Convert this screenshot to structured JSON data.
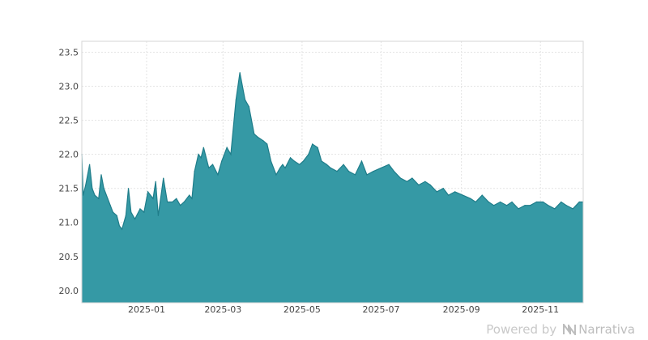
{
  "chart_data": {
    "type": "area",
    "title": "",
    "xlabel": "",
    "ylabel": "",
    "ylim": [
      19.82,
      23.66
    ],
    "xlim": [
      "2024-11-12",
      "2025-12-04"
    ],
    "yticks": [
      20.0,
      20.5,
      21.0,
      21.5,
      22.0,
      22.5,
      23.0,
      23.5
    ],
    "xticks": [
      "2025-01",
      "2025-03",
      "2025-05",
      "2025-07",
      "2025-09",
      "2025-11"
    ],
    "grid": true,
    "fill_color": "#3599a5",
    "line_color": "#1f7d8a",
    "series": [
      {
        "x": [
          "2024-11-12",
          "2024-11-13",
          "2024-11-15",
          "2024-11-18",
          "2024-11-20",
          "2024-11-22",
          "2024-11-25",
          "2024-11-27",
          "2024-11-29",
          "2024-12-02",
          "2024-12-04",
          "2024-12-06",
          "2024-12-09",
          "2024-12-11",
          "2024-12-13",
          "2024-12-16",
          "2024-12-18",
          "2024-12-20",
          "2024-12-23",
          "2024-12-27",
          "2024-12-30",
          "2025-01-02",
          "2025-01-06",
          "2025-01-08",
          "2025-01-10",
          "2025-01-14",
          "2025-01-17",
          "2025-01-21",
          "2025-01-24",
          "2025-01-27",
          "2025-01-30",
          "2025-02-03",
          "2025-02-05",
          "2025-02-07",
          "2025-02-10",
          "2025-02-12",
          "2025-02-14",
          "2025-02-18",
          "2025-02-21",
          "2025-02-25",
          "2025-02-28",
          "2025-03-04",
          "2025-03-07",
          "2025-03-11",
          "2025-03-14",
          "2025-03-18",
          "2025-03-21",
          "2025-03-25",
          "2025-03-28",
          "2025-04-01",
          "2025-04-04",
          "2025-04-07",
          "2025-04-09",
          "2025-04-11",
          "2025-04-14",
          "2025-04-16",
          "2025-04-18",
          "2025-04-22",
          "2025-04-25",
          "2025-04-29",
          "2025-05-02",
          "2025-05-06",
          "2025-05-09",
          "2025-05-13",
          "2025-05-16",
          "2025-05-20",
          "2025-05-23",
          "2025-05-28",
          "2025-06-02",
          "2025-06-06",
          "2025-06-11",
          "2025-06-16",
          "2025-06-20",
          "2025-06-25",
          "2025-07-01",
          "2025-07-07",
          "2025-07-11",
          "2025-07-16",
          "2025-07-21",
          "2025-07-25",
          "2025-07-30",
          "2025-08-04",
          "2025-08-08",
          "2025-08-13",
          "2025-08-18",
          "2025-08-22",
          "2025-08-27",
          "2025-09-02",
          "2025-09-08",
          "2025-09-12",
          "2025-09-17",
          "2025-09-22",
          "2025-09-26",
          "2025-10-01",
          "2025-10-06",
          "2025-10-10",
          "2025-10-15",
          "2025-10-20",
          "2025-10-24",
          "2025-10-29",
          "2025-11-03",
          "2025-11-07",
          "2025-11-12",
          "2025-11-17",
          "2025-11-21",
          "2025-11-26",
          "2025-12-01",
          "2025-12-04"
        ],
        "y": [
          22.0,
          21.4,
          21.55,
          21.85,
          21.5,
          21.4,
          21.35,
          21.7,
          21.5,
          21.35,
          21.25,
          21.15,
          21.1,
          20.95,
          20.9,
          21.1,
          21.5,
          21.15,
          21.05,
          21.2,
          21.15,
          21.45,
          21.35,
          21.6,
          21.1,
          21.65,
          21.3,
          21.3,
          21.35,
          21.25,
          21.3,
          21.4,
          21.35,
          21.75,
          22.0,
          21.95,
          22.1,
          21.8,
          21.85,
          21.7,
          21.9,
          22.1,
          22.0,
          22.8,
          23.2,
          22.8,
          22.7,
          22.3,
          22.25,
          22.2,
          22.15,
          21.9,
          21.8,
          21.7,
          21.8,
          21.85,
          21.8,
          21.95,
          21.9,
          21.85,
          21.9,
          22.0,
          22.15,
          22.1,
          21.9,
          21.85,
          21.8,
          21.75,
          21.85,
          21.75,
          21.7,
          21.9,
          21.7,
          21.75,
          21.8,
          21.85,
          21.75,
          21.65,
          21.6,
          21.65,
          21.55,
          21.6,
          21.55,
          21.45,
          21.5,
          21.4,
          21.45,
          21.4,
          21.35,
          21.3,
          21.4,
          21.3,
          21.25,
          21.3,
          21.25,
          21.3,
          21.2,
          21.25,
          21.25,
          21.3,
          21.3,
          21.25,
          21.2,
          21.3,
          21.25,
          21.2,
          21.3,
          21.3
        ]
      }
    ]
  },
  "watermark": {
    "prefix": "Powered by",
    "brand": "Narrativa",
    "logo_icon": "narrativa-logo-icon"
  }
}
